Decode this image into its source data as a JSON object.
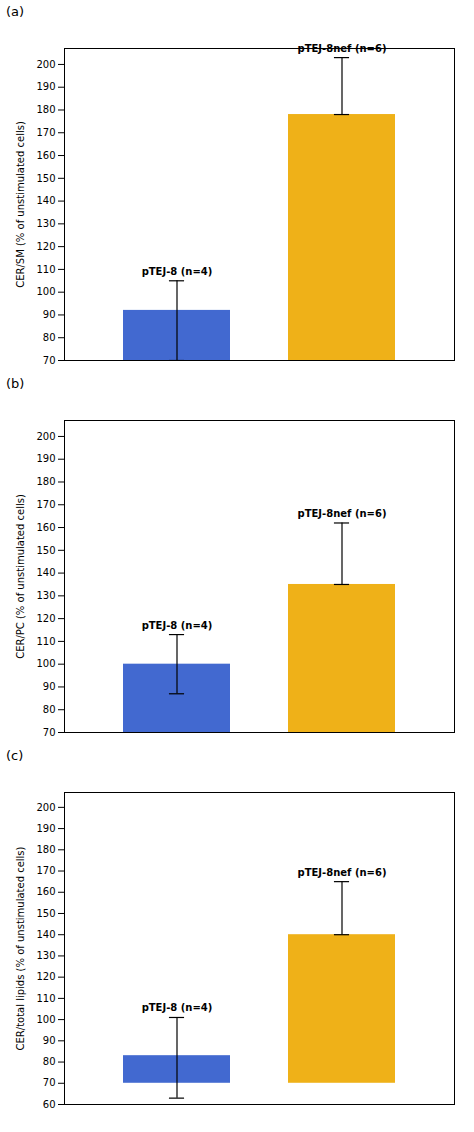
{
  "chart_data": [
    {
      "type": "bar",
      "title": "(a)",
      "y_label": "CER/SM (% of unstimulated cells)",
      "categories": [
        "pTEJ-8 (n=4)",
        "pTEJ-8nef (n=6)"
      ],
      "values": [
        92,
        178
      ],
      "error_low": [
        22,
        0
      ],
      "error_high": [
        13,
        25
      ],
      "baseline": 70,
      "ylim": [
        70,
        207
      ],
      "yticks": [
        70,
        80,
        90,
        100,
        110,
        120,
        130,
        140,
        150,
        160,
        170,
        180,
        190,
        200
      ],
      "grid": false,
      "tick_labels": "y"
    },
    {
      "type": "bar",
      "title": "(b)",
      "y_label": "CER/PC (% of unstimulated cells)",
      "categories": [
        "pTEJ-8 (n=4)",
        "pTEJ-8nef (n=6)"
      ],
      "values": [
        100,
        135
      ],
      "error_low": [
        13,
        0
      ],
      "error_high": [
        13,
        27
      ],
      "baseline": 70,
      "ylim": [
        70,
        207
      ],
      "yticks": [
        70,
        80,
        90,
        100,
        110,
        120,
        130,
        140,
        150,
        160,
        170,
        180,
        190,
        200
      ],
      "grid": false,
      "tick_labels": "y"
    },
    {
      "type": "bar",
      "title": "(c)",
      "y_label": "CER/total lipids (% of unstimulated cells)",
      "categories": [
        "pTEJ-8 (n=4)",
        "pTEJ-8nef (n=6)"
      ],
      "values": [
        83,
        140
      ],
      "error_low": [
        20,
        0
      ],
      "error_high": [
        18,
        25
      ],
      "baseline": 70,
      "ylim": [
        60,
        207
      ],
      "yticks": [
        60,
        70,
        80,
        90,
        100,
        110,
        120,
        130,
        140,
        150,
        160,
        170,
        180,
        190,
        200
      ],
      "grid": false,
      "tick_labels": "y"
    }
  ]
}
